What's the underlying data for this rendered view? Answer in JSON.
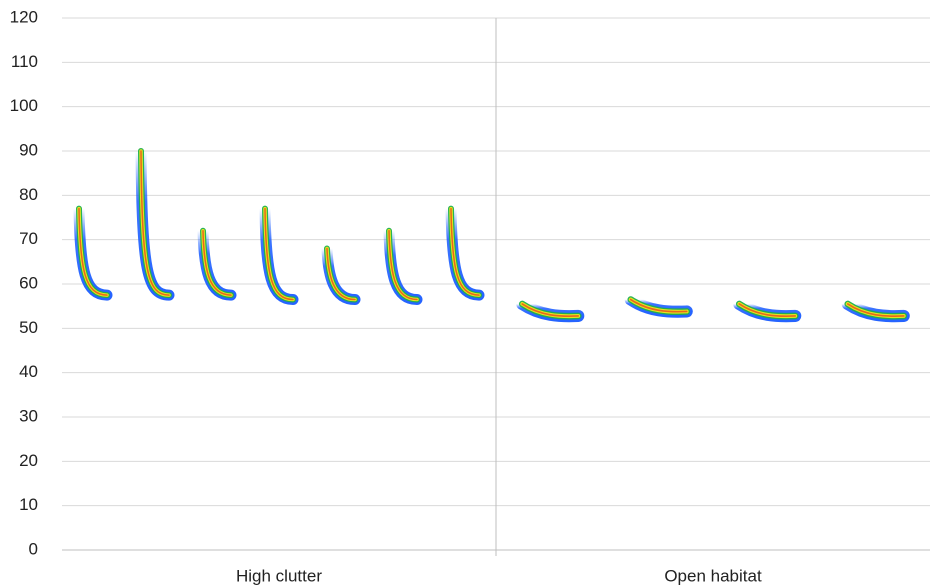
{
  "chart_data": {
    "type": "spectrogram",
    "categories": [
      "High clutter",
      "Open habitat"
    ],
    "calls": [
      {
        "start": [
          77,
          90,
          72,
          77,
          68,
          72,
          77
        ],
        "end": [
          56,
          56,
          56,
          55,
          55,
          55,
          56
        ]
      },
      {
        "start": [
          57,
          58,
          57,
          57
        ],
        "end": [
          52,
          53,
          52,
          52
        ]
      }
    ],
    "ylim": [
      0,
      120
    ],
    "yticks": [
      0,
      10,
      20,
      30,
      40,
      50,
      60,
      70,
      80,
      90,
      100,
      110,
      120
    ],
    "grid": true
  }
}
